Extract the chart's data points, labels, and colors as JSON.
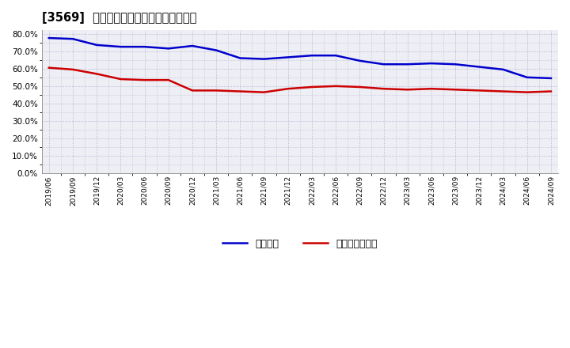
{
  "title": "[3569]  固定比率、固定長期適合率の推移",
  "blue_label": "固定比率",
  "red_label": "固定長期適合率",
  "x_labels": [
    "2019/06",
    "2019/09",
    "2019/12",
    "2020/03",
    "2020/06",
    "2020/09",
    "2020/12",
    "2021/03",
    "2021/06",
    "2021/09",
    "2021/12",
    "2022/03",
    "2022/06",
    "2022/09",
    "2022/12",
    "2023/03",
    "2023/06",
    "2023/09",
    "2023/12",
    "2024/03",
    "2024/06",
    "2024/09"
  ],
  "blue_values": [
    77.5,
    77.0,
    73.5,
    72.5,
    72.5,
    71.5,
    73.0,
    70.5,
    66.0,
    65.5,
    66.5,
    67.5,
    67.5,
    64.5,
    62.5,
    62.5,
    63.0,
    62.5,
    61.0,
    59.5,
    55.0,
    54.5
  ],
  "red_values": [
    60.5,
    59.5,
    57.0,
    54.0,
    53.5,
    53.5,
    47.5,
    47.5,
    47.0,
    46.5,
    48.5,
    49.5,
    50.0,
    49.5,
    48.5,
    48.0,
    48.5,
    48.0,
    47.5,
    47.0,
    46.5,
    47.0
  ],
  "ylim": [
    0,
    82
  ],
  "yticks": [
    0.0,
    10.0,
    20.0,
    30.0,
    40.0,
    50.0,
    60.0,
    70.0,
    80.0
  ],
  "blue_color": "#0000cc",
  "red_color": "#cc0000",
  "bg_color": "#eeeef5",
  "grid_color": "#aaaacc",
  "line_width": 1.8
}
